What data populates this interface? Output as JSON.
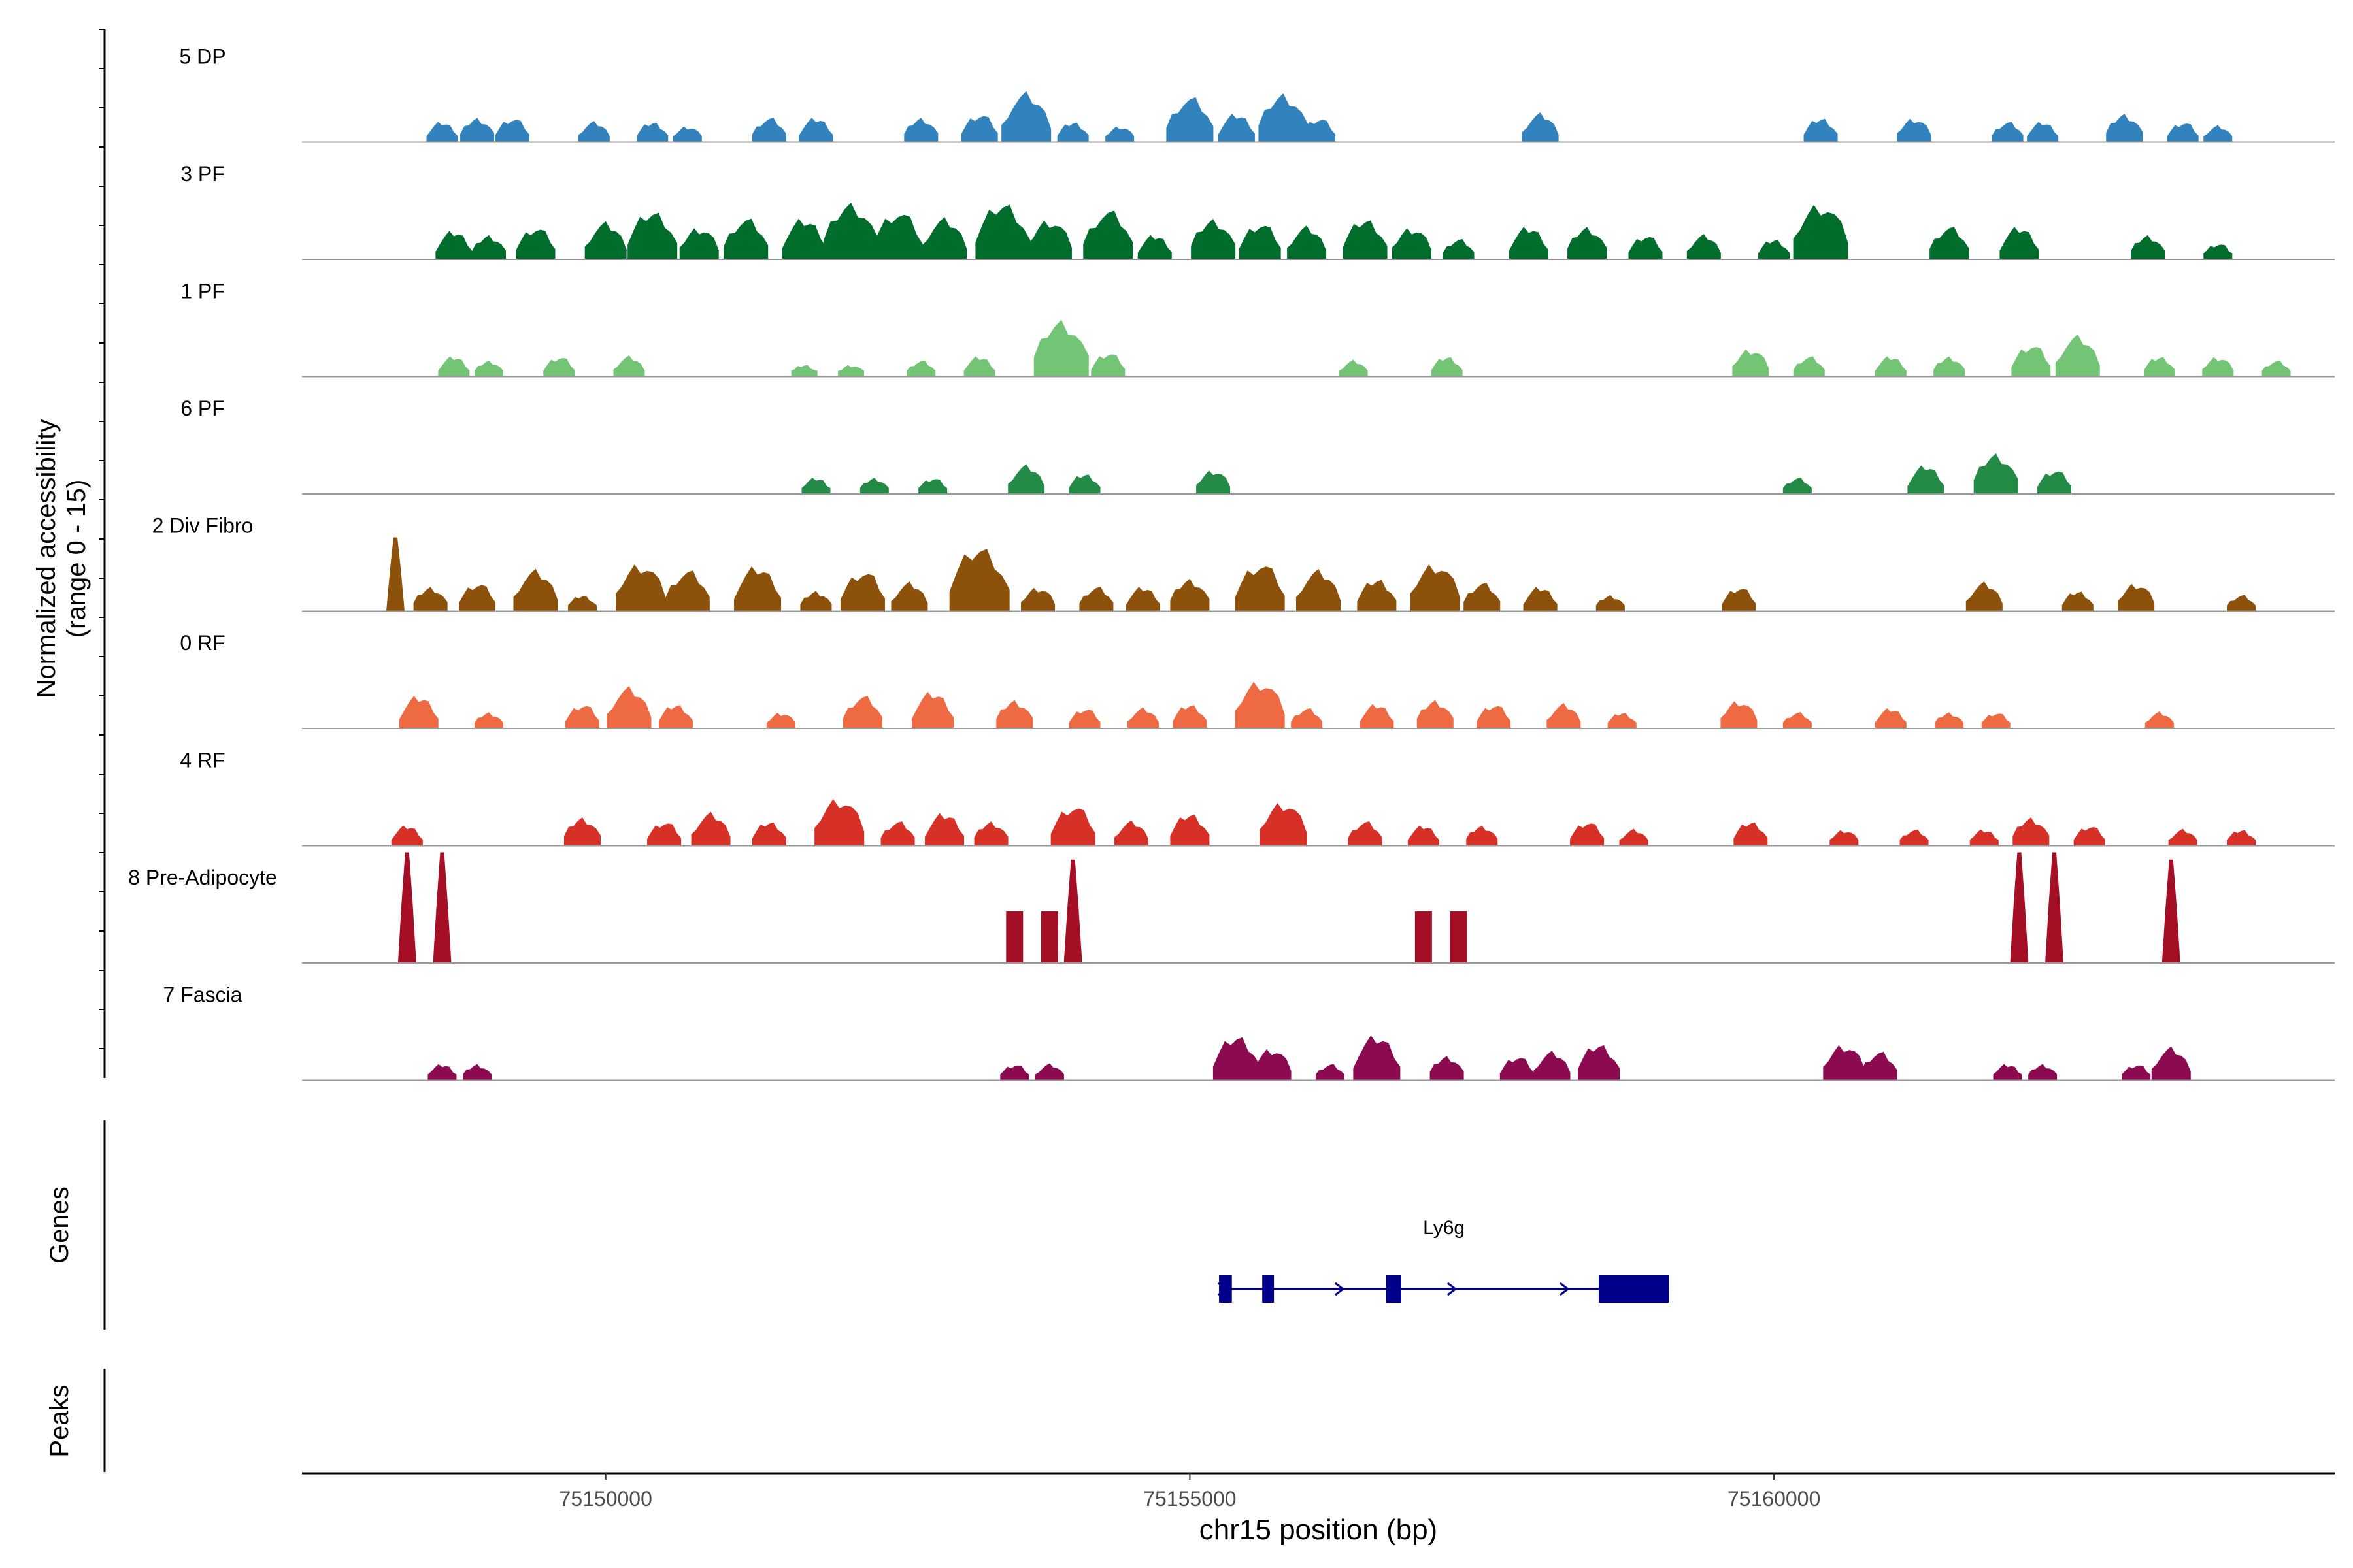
{
  "chart_data": {
    "type": "area",
    "title": "",
    "ylabel": "Normalized accessibility\n(range 0 - 15)",
    "xlabel": "chr15 position (bp)",
    "xlim": [
      75147400,
      75164800
    ],
    "ylim": [
      0,
      15
    ],
    "x_ticks": [
      75150000,
      75155000,
      75160000
    ],
    "x_tick_labels": [
      "75150000",
      "75155000",
      "75160000"
    ],
    "tracks": [
      {
        "name": "5 DP",
        "color": "#3182bd",
        "peaks": [
          [
            75148600,
            2.5
          ],
          [
            75148900,
            3
          ],
          [
            75149200,
            3
          ],
          [
            75149900,
            2.5
          ],
          [
            75150400,
            2.5
          ],
          [
            75150700,
            2
          ],
          [
            75151400,
            3
          ],
          [
            75151800,
            3
          ],
          [
            75152700,
            3
          ],
          [
            75153200,
            3.5
          ],
          [
            75153600,
            6
          ],
          [
            75154000,
            2.5
          ],
          [
            75154400,
            2
          ],
          [
            75155000,
            5.5
          ],
          [
            75155400,
            3.5
          ],
          [
            75155800,
            6
          ],
          [
            75156100,
            3
          ],
          [
            75158000,
            3.5
          ],
          [
            75160400,
            3
          ],
          [
            75161200,
            3
          ],
          [
            75162000,
            2.5
          ],
          [
            75162300,
            2.5
          ],
          [
            75163000,
            3.5
          ],
          [
            75163500,
            2.5
          ],
          [
            75163800,
            2
          ]
        ]
      },
      {
        "name": "3 PF",
        "color": "#006d2c",
        "peaks": [
          [
            75148700,
            3.5
          ],
          [
            75149000,
            3
          ],
          [
            75149400,
            4
          ],
          [
            75150000,
            4.5
          ],
          [
            75150400,
            6
          ],
          [
            75150800,
            4
          ],
          [
            75151200,
            5
          ],
          [
            75151700,
            5
          ],
          [
            75152100,
            7
          ],
          [
            75152500,
            6
          ],
          [
            75152900,
            5
          ],
          [
            75153400,
            7
          ],
          [
            75153800,
            5
          ],
          [
            75154300,
            6
          ],
          [
            75154700,
            3
          ],
          [
            75155200,
            5
          ],
          [
            75155600,
            4.5
          ],
          [
            75156000,
            4
          ],
          [
            75156500,
            5
          ],
          [
            75156900,
            4
          ],
          [
            75157300,
            2.5
          ],
          [
            75157900,
            4
          ],
          [
            75158400,
            4
          ],
          [
            75158900,
            3
          ],
          [
            75159400,
            3
          ],
          [
            75160000,
            2.5
          ],
          [
            75160400,
            7
          ],
          [
            75161500,
            4
          ],
          [
            75162100,
            4
          ],
          [
            75163200,
            3
          ],
          [
            75163800,
            2
          ]
        ]
      },
      {
        "name": "1 PF",
        "color": "#74c476",
        "peaks": [
          [
            75148700,
            2.5
          ],
          [
            75149000,
            2
          ],
          [
            75149600,
            2.5
          ],
          [
            75150200,
            2.5
          ],
          [
            75151700,
            1.5
          ],
          [
            75152100,
            1.5
          ],
          [
            75152700,
            2
          ],
          [
            75153200,
            2.5
          ],
          [
            75153900,
            7
          ],
          [
            75154300,
            3
          ],
          [
            75156400,
            2
          ],
          [
            75157200,
            2.5
          ],
          [
            75159800,
            3.5
          ],
          [
            75160300,
            2.5
          ],
          [
            75161000,
            2.5
          ],
          [
            75161500,
            2.5
          ],
          [
            75162200,
            4
          ],
          [
            75162600,
            5
          ],
          [
            75163300,
            2.5
          ],
          [
            75163800,
            2.5
          ],
          [
            75164300,
            2
          ]
        ]
      },
      {
        "name": "6 PF",
        "color": "#238b45",
        "peaks": [
          [
            75151800,
            2
          ],
          [
            75152300,
            2
          ],
          [
            75152800,
            2
          ],
          [
            75153600,
            3.5
          ],
          [
            75154100,
            2.5
          ],
          [
            75155200,
            3
          ],
          [
            75160200,
            2
          ],
          [
            75161300,
            3.5
          ],
          [
            75161900,
            5
          ],
          [
            75162400,
            3
          ]
        ]
      },
      {
        "name": "2 Div Fibro",
        "color": "#8c510a",
        "peaks": [
          [
            75148200,
            10
          ],
          [
            75148500,
            3
          ],
          [
            75148900,
            3.5
          ],
          [
            75149400,
            5
          ],
          [
            75149800,
            2
          ],
          [
            75150300,
            6
          ],
          [
            75150700,
            5
          ],
          [
            75151300,
            5.5
          ],
          [
            75151800,
            2.5
          ],
          [
            75152200,
            5
          ],
          [
            75152600,
            3.5
          ],
          [
            75153200,
            8
          ],
          [
            75153700,
            3
          ],
          [
            75154200,
            3
          ],
          [
            75154600,
            3
          ],
          [
            75155000,
            4
          ],
          [
            75155600,
            6
          ],
          [
            75156100,
            5
          ],
          [
            75156600,
            4
          ],
          [
            75157100,
            6
          ],
          [
            75157500,
            3.5
          ],
          [
            75158000,
            3
          ],
          [
            75158600,
            2
          ],
          [
            75159700,
            3
          ],
          [
            75161800,
            3.5
          ],
          [
            75162600,
            2.5
          ],
          [
            75163100,
            3.5
          ],
          [
            75164000,
            2
          ]
        ]
      },
      {
        "name": "0 RF",
        "color": "#ee6a43",
        "peaks": [
          [
            75148400,
            4
          ],
          [
            75149000,
            2
          ],
          [
            75149800,
            3
          ],
          [
            75150200,
            5
          ],
          [
            75150600,
            3
          ],
          [
            75151500,
            2
          ],
          [
            75152200,
            4
          ],
          [
            75152800,
            4.5
          ],
          [
            75153500,
            3.5
          ],
          [
            75154100,
            2.5
          ],
          [
            75154600,
            2.5
          ],
          [
            75155000,
            3
          ],
          [
            75155600,
            6
          ],
          [
            75156000,
            2.5
          ],
          [
            75156600,
            3
          ],
          [
            75157100,
            3.5
          ],
          [
            75157600,
            3
          ],
          [
            75158200,
            3
          ],
          [
            75158700,
            2
          ],
          [
            75159700,
            3.5
          ],
          [
            75160200,
            2
          ],
          [
            75161000,
            2.5
          ],
          [
            75161500,
            2
          ],
          [
            75161900,
            2
          ],
          [
            75163300,
            2
          ]
        ]
      },
      {
        "name": "4 RF",
        "color": "#d73027",
        "peaks": [
          [
            75148300,
            2.5
          ],
          [
            75149800,
            3.5
          ],
          [
            75150500,
            3
          ],
          [
            75150900,
            4
          ],
          [
            75151400,
            3
          ],
          [
            75152000,
            6
          ],
          [
            75152500,
            3
          ],
          [
            75152900,
            4
          ],
          [
            75153300,
            3
          ],
          [
            75154000,
            5
          ],
          [
            75154500,
            3
          ],
          [
            75155000,
            4
          ],
          [
            75155800,
            5.5
          ],
          [
            75156500,
            3
          ],
          [
            75157000,
            2.5
          ],
          [
            75157500,
            2.5
          ],
          [
            75158400,
            3
          ],
          [
            75158800,
            2
          ],
          [
            75159800,
            3
          ],
          [
            75160600,
            2
          ],
          [
            75161200,
            2
          ],
          [
            75161800,
            2
          ],
          [
            75162200,
            3.5
          ],
          [
            75162700,
            2.5
          ],
          [
            75163500,
            2
          ],
          [
            75164000,
            2
          ]
        ]
      },
      {
        "name": "8 Pre-Adipocyte",
        "color": "#a50f25",
        "peaks": [
          [
            75148300,
            15
          ],
          [
            75148600,
            15
          ],
          [
            75153500,
            7
          ],
          [
            75153800,
            7
          ],
          [
            75154000,
            14
          ],
          [
            75157000,
            7
          ],
          [
            75157300,
            7
          ],
          [
            75162100,
            15
          ],
          [
            75162400,
            15
          ],
          [
            75163400,
            14
          ]
        ]
      },
      {
        "name": "7 Fascia",
        "color": "#8b0a50",
        "peaks": [
          [
            75148600,
            2
          ],
          [
            75148900,
            2
          ],
          [
            75153500,
            2
          ],
          [
            75153800,
            2
          ],
          [
            75155400,
            5.5
          ],
          [
            75155700,
            4
          ],
          [
            75156200,
            2
          ],
          [
            75156600,
            5.5
          ],
          [
            75157200,
            3
          ],
          [
            75157800,
            3
          ],
          [
            75158100,
            3.5
          ],
          [
            75158500,
            4.5
          ],
          [
            75160600,
            4.5
          ],
          [
            75160900,
            3.5
          ],
          [
            75162000,
            2
          ],
          [
            75162300,
            2
          ],
          [
            75163100,
            2
          ],
          [
            75163400,
            4
          ]
        ]
      }
    ],
    "genes": [
      {
        "name": "Ly6g",
        "strand": "+",
        "start": 75155250,
        "end": 75159100,
        "exons": [
          [
            75155250,
            75155360
          ],
          [
            75155620,
            75155720
          ],
          [
            75156680,
            75156810
          ],
          [
            75158500,
            75159100
          ]
        ]
      }
    ],
    "panel_labels": {
      "genes": "Genes",
      "peaks": "Peaks"
    }
  }
}
